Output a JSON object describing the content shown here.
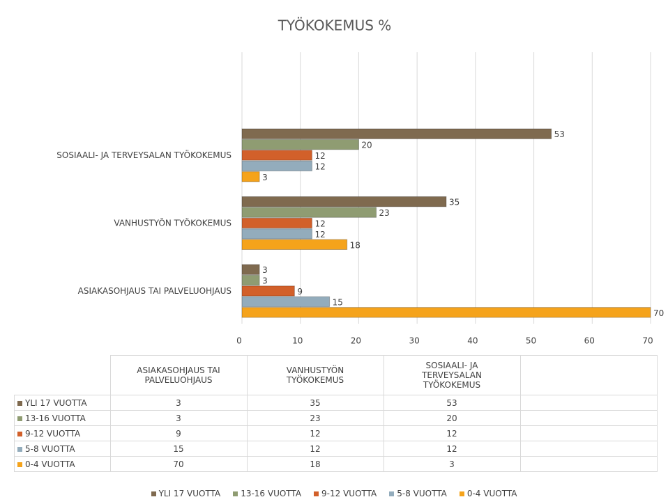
{
  "chart_data": {
    "type": "bar",
    "orientation": "horizontal",
    "title": "TYÖKOKEMUS %",
    "categories": [
      "ASIAKASOHJAUS TAI PALVELUOHJAUS",
      "VANHUSTYÖN TYÖKOKEMUS",
      "SOSIAALI- JA TERVEYSALAN TYÖKOKEMUS"
    ],
    "series": [
      {
        "name": "YLI 17 VUOTTA",
        "color": "#7f6a4f",
        "values": [
          3,
          35,
          53
        ]
      },
      {
        "name": "13-16 VUOTTA",
        "color": "#8f9c72",
        "values": [
          3,
          23,
          20
        ]
      },
      {
        "name": "9-12 VUOTTA",
        "color": "#d2602a",
        "values": [
          9,
          12,
          12
        ]
      },
      {
        "name": "5-8 VUOTTA",
        "color": "#93acbc",
        "values": [
          15,
          12,
          12
        ]
      },
      {
        "name": "0-4 VUOTTA",
        "color": "#f5a31b",
        "values": [
          70,
          18,
          3
        ]
      }
    ],
    "xlim": [
      0,
      70
    ],
    "xticks": [
      0,
      10,
      20,
      30,
      40,
      50,
      60,
      70
    ],
    "grid": true,
    "data_table": true,
    "legend": "bottom"
  }
}
